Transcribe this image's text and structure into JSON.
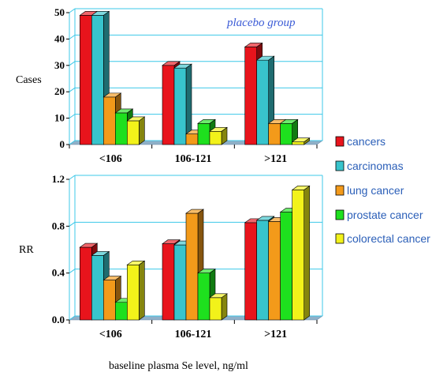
{
  "chart_data": [
    {
      "type": "bar",
      "categories": [
        "<106",
        "106-121",
        ">121"
      ],
      "series": [
        {
          "name": "cancers",
          "values": [
            49,
            30,
            37
          ]
        },
        {
          "name": "carcinomas",
          "values": [
            49,
            29,
            32
          ]
        },
        {
          "name": "lung cancer",
          "values": [
            18,
            4,
            8
          ]
        },
        {
          "name": "prostate cancer",
          "values": [
            12,
            8,
            8
          ]
        },
        {
          "name": "colorectal cancer",
          "values": [
            9,
            5,
            1
          ]
        }
      ],
      "ylabel": "Cases",
      "ylim": [
        0,
        50
      ],
      "yticks": [
        "0",
        "10",
        "20",
        "30",
        "40",
        "50"
      ],
      "annotation": "placebo group",
      "grid": true
    },
    {
      "type": "bar",
      "categories": [
        "<106",
        "106-121",
        ">121"
      ],
      "series": [
        {
          "name": "cancers",
          "values": [
            0.62,
            0.65,
            0.83
          ]
        },
        {
          "name": "carcinomas",
          "values": [
            0.55,
            0.64,
            0.85
          ]
        },
        {
          "name": "lung cancer",
          "values": [
            0.34,
            0.91,
            0.84
          ]
        },
        {
          "name": "prostate cancer",
          "values": [
            0.15,
            0.4,
            0.92
          ]
        },
        {
          "name": "colorectal cancer",
          "values": [
            0.47,
            0.19,
            1.11
          ]
        }
      ],
      "ylabel": "RR",
      "xlabel": "baseline plasma Se level, ng/ml",
      "ylim": [
        0,
        1.2
      ],
      "yticks": [
        "0.0",
        "0.4",
        "0.8",
        "1.2"
      ],
      "grid": true
    }
  ],
  "legend": {
    "position": "right",
    "items": [
      "cancers",
      "carcinomas",
      "lung cancer",
      "prostate cancer",
      "colorectal cancer"
    ]
  },
  "colors": {
    "cancers": "#e8141c",
    "carcinomas": "#38c4cc",
    "lung cancer": "#f39a1a",
    "prostate cancer": "#1ee01e",
    "colorectal cancer": "#f2f21a",
    "grid": "#3cc8e8",
    "floor": "#8fb0c8"
  }
}
